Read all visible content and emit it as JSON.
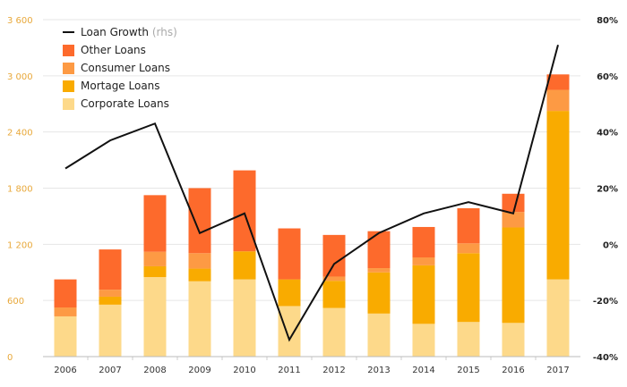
{
  "chart_data": {
    "type": "bar",
    "stacked": true,
    "categories": [
      "2006",
      "2007",
      "2008",
      "2009",
      "2010",
      "2011",
      "2012",
      "2013",
      "2014",
      "2015",
      "2016",
      "2017"
    ],
    "series": [
      {
        "name": "Corporate Loans",
        "color": "#fdd98a",
        "values": [
          430,
          555,
          850,
          805,
          825,
          540,
          520,
          460,
          350,
          370,
          360,
          825
        ]
      },
      {
        "name": "Mortage Loans",
        "color": "#f9ab00",
        "values": [
          0,
          85,
          115,
          135,
          300,
          285,
          290,
          440,
          625,
          735,
          1020,
          1800
        ]
      },
      {
        "name": "Consumer Loans",
        "color": "#fd9a44",
        "values": [
          95,
          75,
          155,
          165,
          0,
          0,
          45,
          45,
          85,
          105,
          165,
          225
        ]
      },
      {
        "name": "Other Loans",
        "color": "#fd6a2c",
        "values": [
          300,
          430,
          605,
          695,
          865,
          545,
          445,
          395,
          325,
          375,
          195,
          165
        ]
      }
    ],
    "line": {
      "name": "Loan Growth",
      "name_suffix": "(rhs)",
      "color": "#111111",
      "values": [
        27,
        37,
        43,
        4,
        11,
        -34,
        -7,
        4,
        11,
        15,
        11,
        71
      ]
    },
    "y_left": {
      "min": 0,
      "max": 3600,
      "ticks": [
        "0",
        "600",
        "1 200",
        "1 800",
        "2 400",
        "3 000",
        "3 600"
      ],
      "tick_values": [
        0,
        600,
        1200,
        1800,
        2400,
        3000,
        3600
      ],
      "color": "#e8a83a"
    },
    "y_right": {
      "min": -40,
      "max": 80,
      "ticks": [
        "-40%",
        "-20%",
        "0%",
        "20%",
        "40%",
        "60%",
        "80%"
      ],
      "tick_values": [
        -40,
        -20,
        0,
        20,
        40,
        60,
        80
      ]
    },
    "grid": true,
    "legend_position": "top-left"
  }
}
